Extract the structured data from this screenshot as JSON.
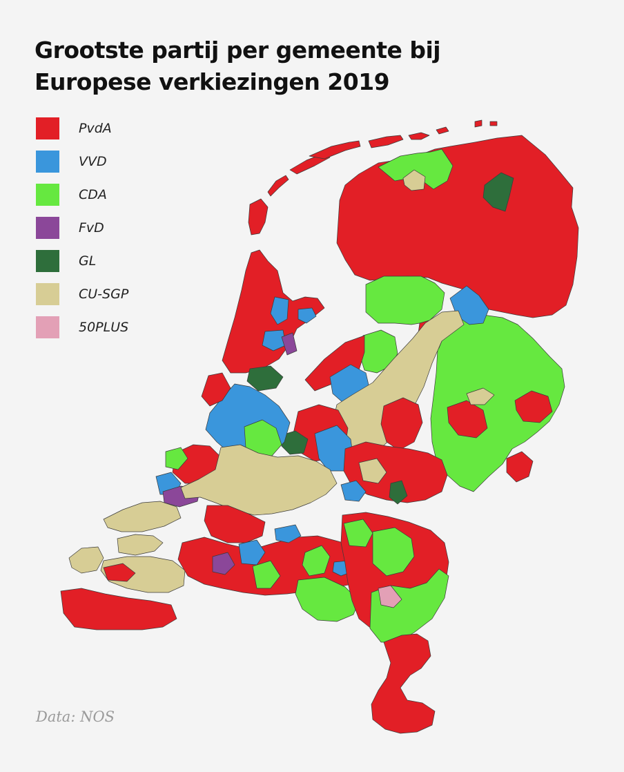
{
  "title": {
    "line1": "Grootste partij per gemeente bij",
    "line2": "Europese verkiezingen 2019"
  },
  "legend": [
    {
      "label": "PvdA",
      "color": "#e21f26"
    },
    {
      "label": "VVD",
      "color": "#3a96dc"
    },
    {
      "label": "CDA",
      "color": "#66e840"
    },
    {
      "label": "FvD",
      "color": "#8b4799"
    },
    {
      "label": "GL",
      "color": "#2e6e3b"
    },
    {
      "label": "CU-SGP",
      "color": "#d7cd95"
    },
    {
      "label": "50PLUS",
      "color": "#e3a0b6"
    }
  ],
  "source": "Data: NOS",
  "map": {
    "background_water": "#f4f4f4",
    "border_color": "#3a3a3a"
  }
}
